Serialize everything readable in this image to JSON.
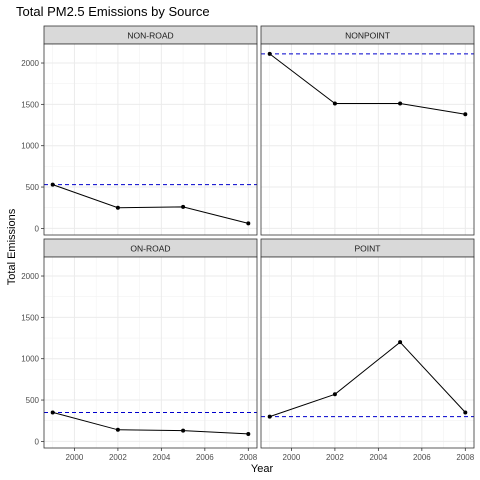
{
  "chart_data": {
    "type": "line",
    "title": "Total PM2.5 Emissions by Source",
    "xlabel": "Year",
    "ylabel": "Total Emissions",
    "xlim": [
      1998.6,
      2008.4
    ],
    "ylim": [
      -80,
      2230
    ],
    "x_ticks": [
      2000,
      2002,
      2004,
      2006,
      2008
    ],
    "y_ticks": [
      0,
      500,
      1000,
      1500,
      2000
    ],
    "grid": true,
    "line_color": "#000000",
    "reference_line_color": "#0000cc",
    "panels": [
      {
        "name": "NON-ROAD",
        "x": [
          1999,
          2002,
          2005,
          2008
        ],
        "y": [
          530,
          250,
          260,
          60
        ],
        "reference_value": 530
      },
      {
        "name": "NONPOINT",
        "x": [
          1999,
          2002,
          2005,
          2008
        ],
        "y": [
          2110,
          1510,
          1510,
          1380
        ],
        "reference_value": 2110
      },
      {
        "name": "ON-ROAD",
        "x": [
          1999,
          2002,
          2005,
          2008
        ],
        "y": [
          350,
          140,
          130,
          90
        ],
        "reference_value": 350
      },
      {
        "name": "POINT",
        "x": [
          1999,
          2002,
          2005,
          2008
        ],
        "y": [
          300,
          570,
          1200,
          350
        ],
        "reference_value": 300
      }
    ]
  }
}
